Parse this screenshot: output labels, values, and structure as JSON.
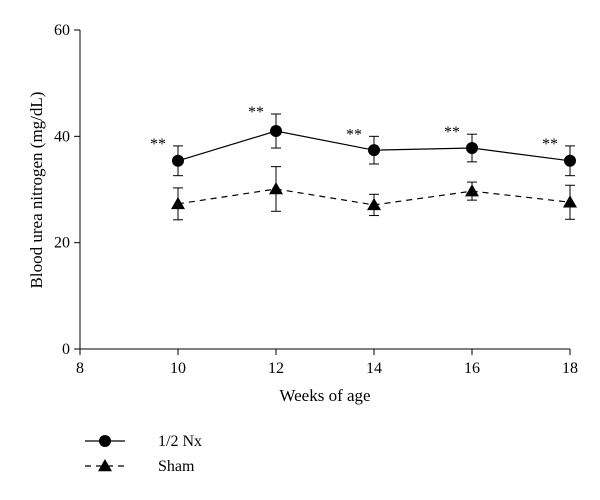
{
  "chart_data": {
    "type": "line",
    "title": "",
    "xlabel": "Weeks of age",
    "ylabel": "Blood urea nitrogen (mg/dL)",
    "xlim": [
      8,
      18
    ],
    "ylim": [
      0,
      60
    ],
    "xticks": [
      8,
      10,
      12,
      14,
      16,
      18
    ],
    "yticks": [
      0,
      20,
      40,
      60
    ],
    "grid": false,
    "legend_position": "bottom-left",
    "x": [
      10,
      12,
      14,
      16,
      18
    ],
    "series": [
      {
        "name": "1/2 Nx",
        "marker": "circle",
        "line_style": "solid",
        "values": [
          35.4,
          41.0,
          37.4,
          37.8,
          35.4
        ],
        "error": [
          2.8,
          3.2,
          2.6,
          2.6,
          2.8
        ],
        "annotations": [
          "**",
          "**",
          "**",
          "**",
          "**"
        ]
      },
      {
        "name": "Sham",
        "marker": "triangle",
        "line_style": "dashed",
        "values": [
          27.3,
          30.1,
          27.1,
          29.7,
          27.6
        ],
        "error": [
          3.0,
          4.2,
          2.0,
          1.7,
          3.2
        ]
      }
    ]
  }
}
